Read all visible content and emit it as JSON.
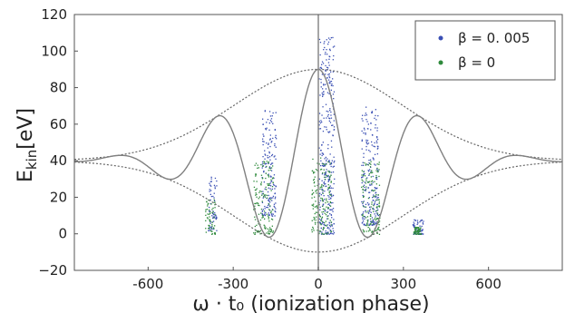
{
  "chart_data": {
    "type": "scatter",
    "xlabel": "ω · t₀ (ionization phase)",
    "ylabel_main": "E",
    "ylabel_sub": "kin",
    "ylabel_unit": "[eV]",
    "xlim": [
      -860,
      860
    ],
    "ylim": [
      -20,
      120
    ],
    "xticks": [
      {
        "value": -600,
        "label": "-600"
      },
      {
        "value": -300,
        "label": "-300"
      },
      {
        "value": 0,
        "label": "0"
      },
      {
        "value": 300,
        "label": "300"
      },
      {
        "value": 600,
        "label": "600"
      }
    ],
    "yticks": [
      {
        "value": -20,
        "label": "−20"
      },
      {
        "value": 0,
        "label": "0"
      },
      {
        "value": 20,
        "label": "20"
      },
      {
        "value": 40,
        "label": "40"
      },
      {
        "value": 60,
        "label": "60"
      },
      {
        "value": 80,
        "label": "80"
      },
      {
        "value": 100,
        "label": "100"
      },
      {
        "value": 120,
        "label": "120"
      }
    ],
    "legend_position": "top-right",
    "grid": false,
    "series": [
      {
        "name": "β = 0. 005",
        "color": "#3a4fb4",
        "clusters": [
          {
            "x": [
              0,
              55
            ],
            "y": [
              0,
              108
            ]
          },
          {
            "x": [
              -200,
              -150
            ],
            "y": [
              10,
              70
            ]
          },
          {
            "x": [
              150,
              210
            ],
            "y": [
              5,
              70
            ]
          },
          {
            "x": [
              -390,
              -360
            ],
            "y": [
              2,
              35
            ]
          },
          {
            "x": [
              330,
              370
            ],
            "y": [
              0,
              8
            ]
          }
        ]
      },
      {
        "name": "β = 0",
        "color": "#2f8a3c",
        "clusters": [
          {
            "x": [
              -25,
              45
            ],
            "y": [
              0,
              42
            ]
          },
          {
            "x": [
              -230,
              -160
            ],
            "y": [
              0,
              40
            ]
          },
          {
            "x": [
              150,
              215
            ],
            "y": [
              0,
              40
            ]
          },
          {
            "x": [
              -400,
              -365
            ],
            "y": [
              0,
              20
            ]
          },
          {
            "x": [
              335,
              360
            ],
            "y": [
              0,
              4
            ]
          }
        ]
      }
    ],
    "curves": [
      {
        "name": "",
        "style": "solid",
        "color": "#808080"
      },
      {
        "name": "",
        "style": "dotted",
        "color": "#666666"
      }
    ]
  }
}
